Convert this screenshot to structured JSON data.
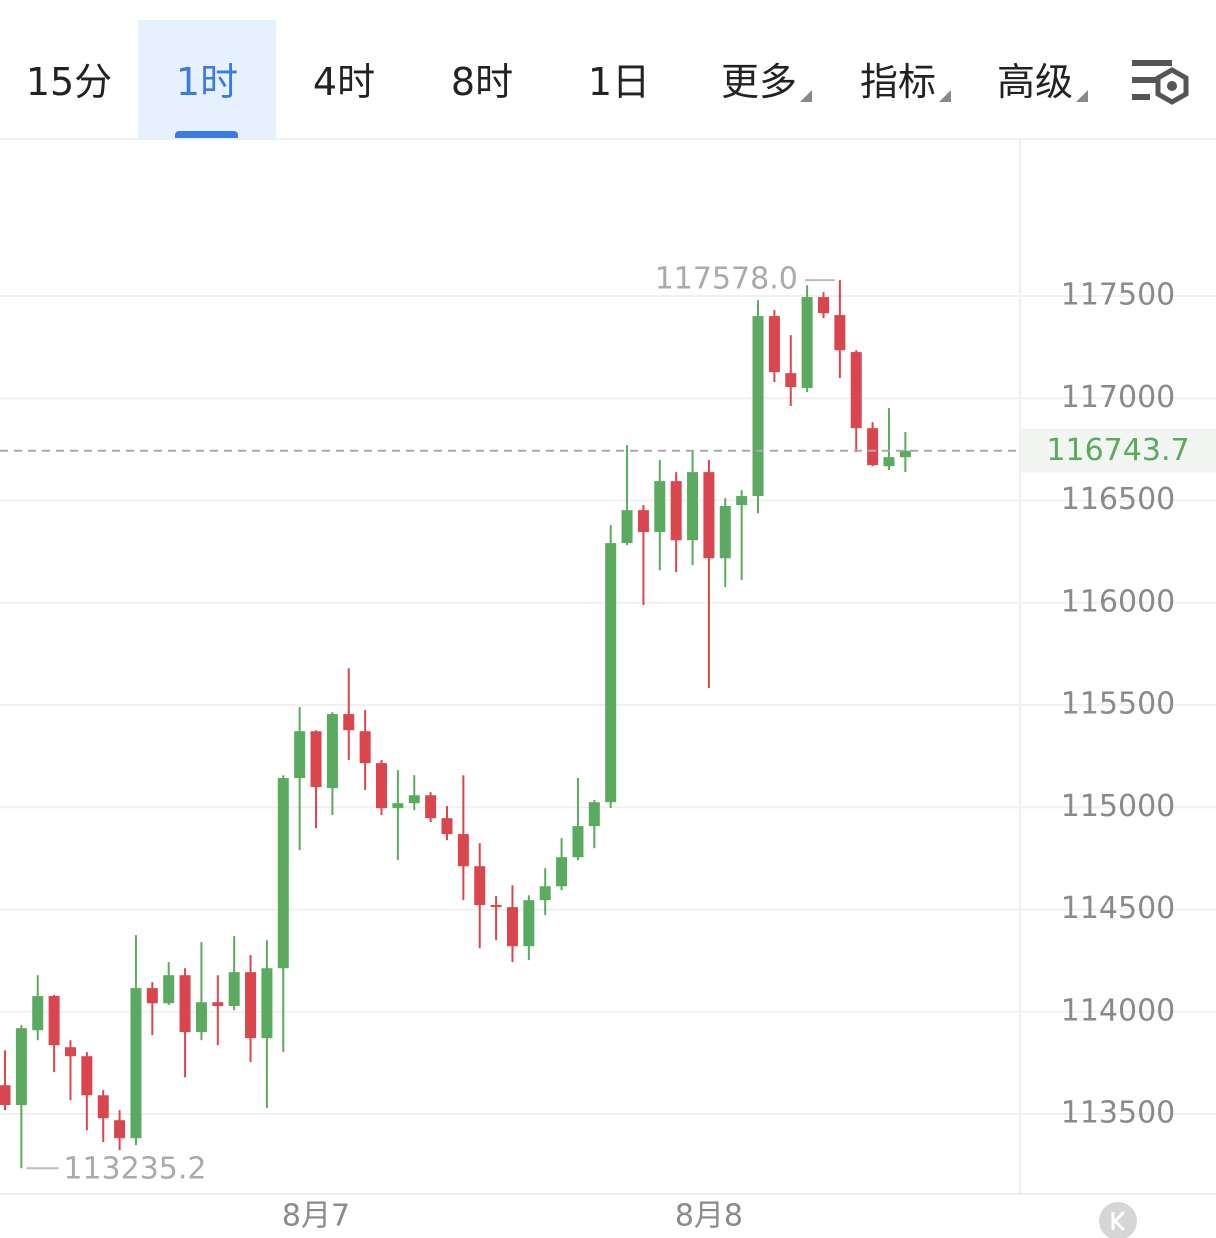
{
  "toolbar": {
    "tabs": [
      "15分",
      "1时",
      "4时",
      "8时",
      "1日",
      "更多",
      "指标",
      "高级"
    ],
    "selected": 1
  },
  "chart_data": {
    "type": "candlestick",
    "categories": [
      null,
      null,
      null,
      null,
      null,
      null,
      null,
      null,
      null,
      null,
      null,
      null,
      null,
      null,
      null,
      null,
      null,
      null,
      null,
      "8月7",
      null,
      null,
      null,
      null,
      null,
      null,
      null,
      null,
      null,
      null,
      null,
      null,
      null,
      null,
      null,
      null,
      null,
      null,
      null,
      null,
      null,
      null,
      null,
      "8月8",
      null,
      null,
      null,
      null,
      null,
      null,
      null,
      null,
      null,
      null,
      null,
      null
    ],
    "open": [
      113641,
      113544,
      113910,
      114077,
      113827,
      113783,
      113592,
      113470,
      113382,
      114116,
      114042,
      114179,
      113901,
      114047,
      114028,
      114194,
      113871,
      114213,
      115143,
      115372,
      115094,
      115456,
      115372,
      115216,
      114996,
      115020,
      115059,
      114947,
      114869,
      114712,
      114522,
      114512,
      114321,
      114546,
      114614,
      114756,
      114908,
      115025,
      116292,
      116453,
      116346,
      116595,
      116306,
      116639,
      116218,
      116478,
      116522,
      117402,
      117123,
      117050,
      117495,
      117407,
      117226,
      116854,
      116668,
      116712
    ],
    "high": [
      113812,
      113935,
      114179,
      114082,
      113861,
      113803,
      113617,
      113519,
      114375,
      114145,
      114243,
      114213,
      114341,
      114179,
      114370,
      114277,
      114350,
      115157,
      115490,
      115377,
      115465,
      115680,
      115475,
      115231,
      115182,
      115157,
      115074,
      115006,
      115157,
      114825,
      114566,
      114619,
      114570,
      114702,
      114849,
      115143,
      115035,
      116380,
      116771,
      116478,
      116698,
      116639,
      116747,
      116698,
      116512,
      116551,
      117480,
      117431,
      117309,
      117553,
      117519,
      117578.0,
      117235,
      116883,
      116952,
      116835
    ],
    "low": [
      113519,
      113235.2,
      113861,
      113705,
      113568,
      113421,
      113363,
      113323,
      113348,
      113886,
      114033,
      113680,
      113861,
      113837,
      114008,
      113754,
      113529,
      113803,
      114790,
      114898,
      114962,
      115231,
      115084,
      114962,
      114742,
      114986,
      114927,
      114839,
      114546,
      114311,
      114350,
      114243,
      114253,
      114473,
      114595,
      114742,
      114800,
      114996,
      116282,
      115989,
      116160,
      116150,
      116184,
      115583,
      116077,
      116111,
      116438,
      117079,
      116962,
      117030,
      117392,
      117099,
      116737,
      116668,
      116649,
      116639
    ],
    "close": [
      113544,
      113920,
      114077,
      113837,
      113783,
      113592,
      113480,
      113382,
      114116,
      114042,
      114179,
      113901,
      114047,
      114028,
      114194,
      113871,
      114213,
      115143,
      115372,
      115099,
      115456,
      115377,
      115216,
      114996,
      115020,
      115059,
      114947,
      114869,
      114712,
      114522,
      114512,
      114321,
      114546,
      114614,
      114756,
      114908,
      115025,
      116292,
      116453,
      116346,
      116595,
      116306,
      116639,
      116218,
      116473,
      116522,
      117402,
      117128,
      117055,
      117495,
      117416,
      117235,
      116854,
      116673,
      116712,
      116743.7
    ],
    "up_color": "#5aaa60",
    "down_color": "#d9464e",
    "ylim": [
      113114,
      118263
    ],
    "yticks": [
      113500,
      114000,
      114500,
      115000,
      115500,
      116000,
      116500,
      117000,
      117500
    ],
    "grid": true,
    "high_label": "117578.0",
    "low_label": "113235.2",
    "last_label": "116743.7"
  }
}
